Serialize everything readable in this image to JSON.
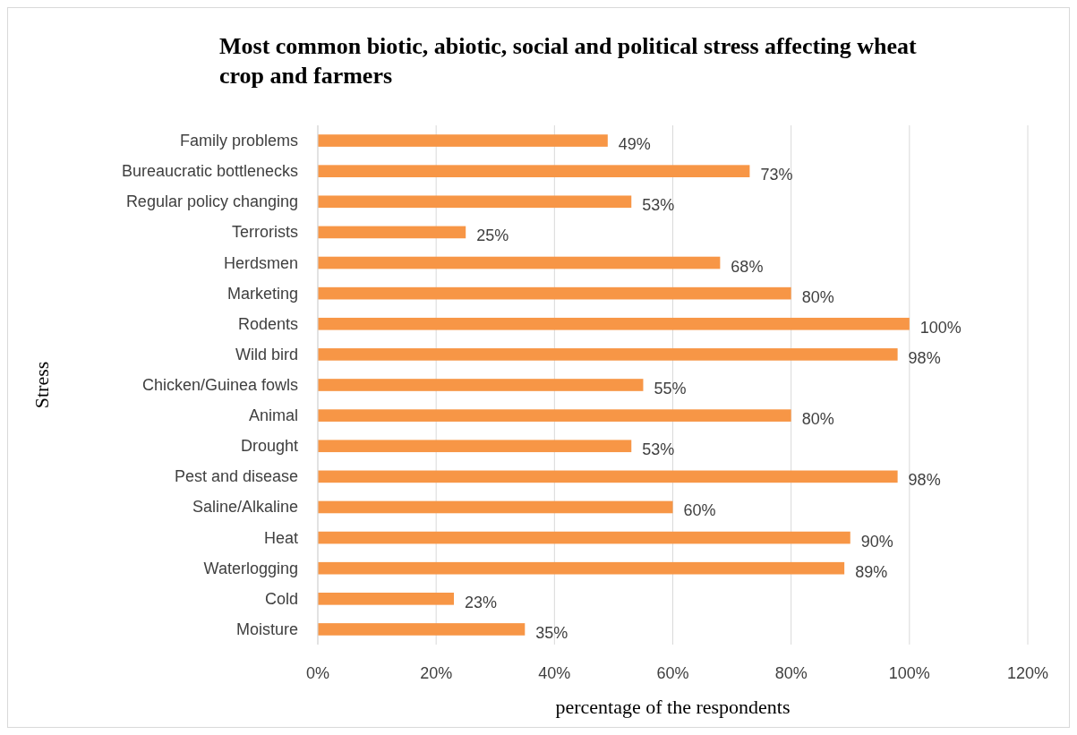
{
  "chart_data": {
    "type": "bar",
    "orientation": "horizontal",
    "title": "Most common biotic, abiotic, social and political stress affecting wheat crop and farmers",
    "xlabel": "percentage of the respondents",
    "ylabel": "Stress",
    "categories": [
      "Family problems",
      "Bureaucratic bottlenecks",
      "Regular policy changing",
      "Terrorists",
      "Herdsmen",
      "Marketing",
      "Rodents",
      "Wild bird",
      "Chicken/Guinea fowls",
      "Animal",
      "Drought",
      "Pest and disease",
      "Saline/Alkaline",
      "Heat",
      "Waterlogging",
      "Cold",
      "Moisture"
    ],
    "values": [
      49,
      73,
      53,
      25,
      68,
      80,
      100,
      98,
      55,
      80,
      53,
      98,
      60,
      90,
      89,
      23,
      35
    ],
    "value_labels": [
      "49%",
      "73%",
      "53%",
      "25%",
      "68%",
      "80%",
      "100%",
      "98%",
      "55%",
      "80%",
      "53%",
      "98%",
      "60%",
      "90%",
      "89%",
      "23%",
      "35%"
    ],
    "color": "#f79646",
    "xlim": [
      0,
      120
    ],
    "xticks": [
      {
        "value": 0,
        "label": "0%"
      },
      {
        "value": 20,
        "label": "20%"
      },
      {
        "value": 40,
        "label": "40%"
      },
      {
        "value": 60,
        "label": "60%"
      },
      {
        "value": 80,
        "label": "80%"
      },
      {
        "value": 100,
        "label": "100%"
      },
      {
        "value": 120,
        "label": "120%"
      }
    ],
    "grid": "x"
  }
}
